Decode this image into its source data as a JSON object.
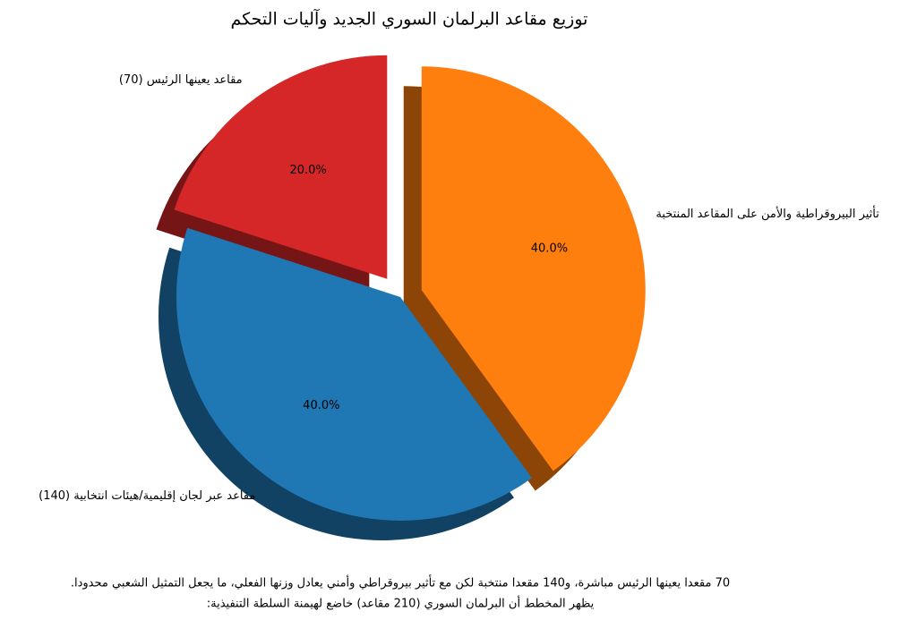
{
  "chart_data": {
    "type": "pie",
    "title": "توزيع مقاعد البرلمان السوري الجديد وآليات التحكم",
    "categories": [
      "مقاعد يعينها الرئيس (70)",
      "مقاعد عبر لجان إقليمية/هيئات انتخابية (140)",
      "تأثير البيروقراطية والأمن على المقاعد المنتخبة"
    ],
    "values": [
      20,
      40,
      40
    ],
    "value_labels": [
      "20.0%",
      "40.0%",
      "40.0%"
    ],
    "colors": [
      "#d62728",
      "#1f77b4",
      "#ff7f0e"
    ],
    "explode": [
      0.1,
      0,
      0.1
    ],
    "startangle": 90,
    "shadow": true,
    "notes": [
      "70 مقعدا يعينها الرئيس مباشرة، و140 مقعدا منتخبة لكن مع تأثير بيروقراطي وأمني يعادل وزنها الفعلي، ما يجعل التمثيل الشعبي محدودا.",
      "يظهر المخطط أن البرلمان السوري (210 مقاعد) خاضع لهيمنة السلطة التنفيذية:"
    ]
  }
}
